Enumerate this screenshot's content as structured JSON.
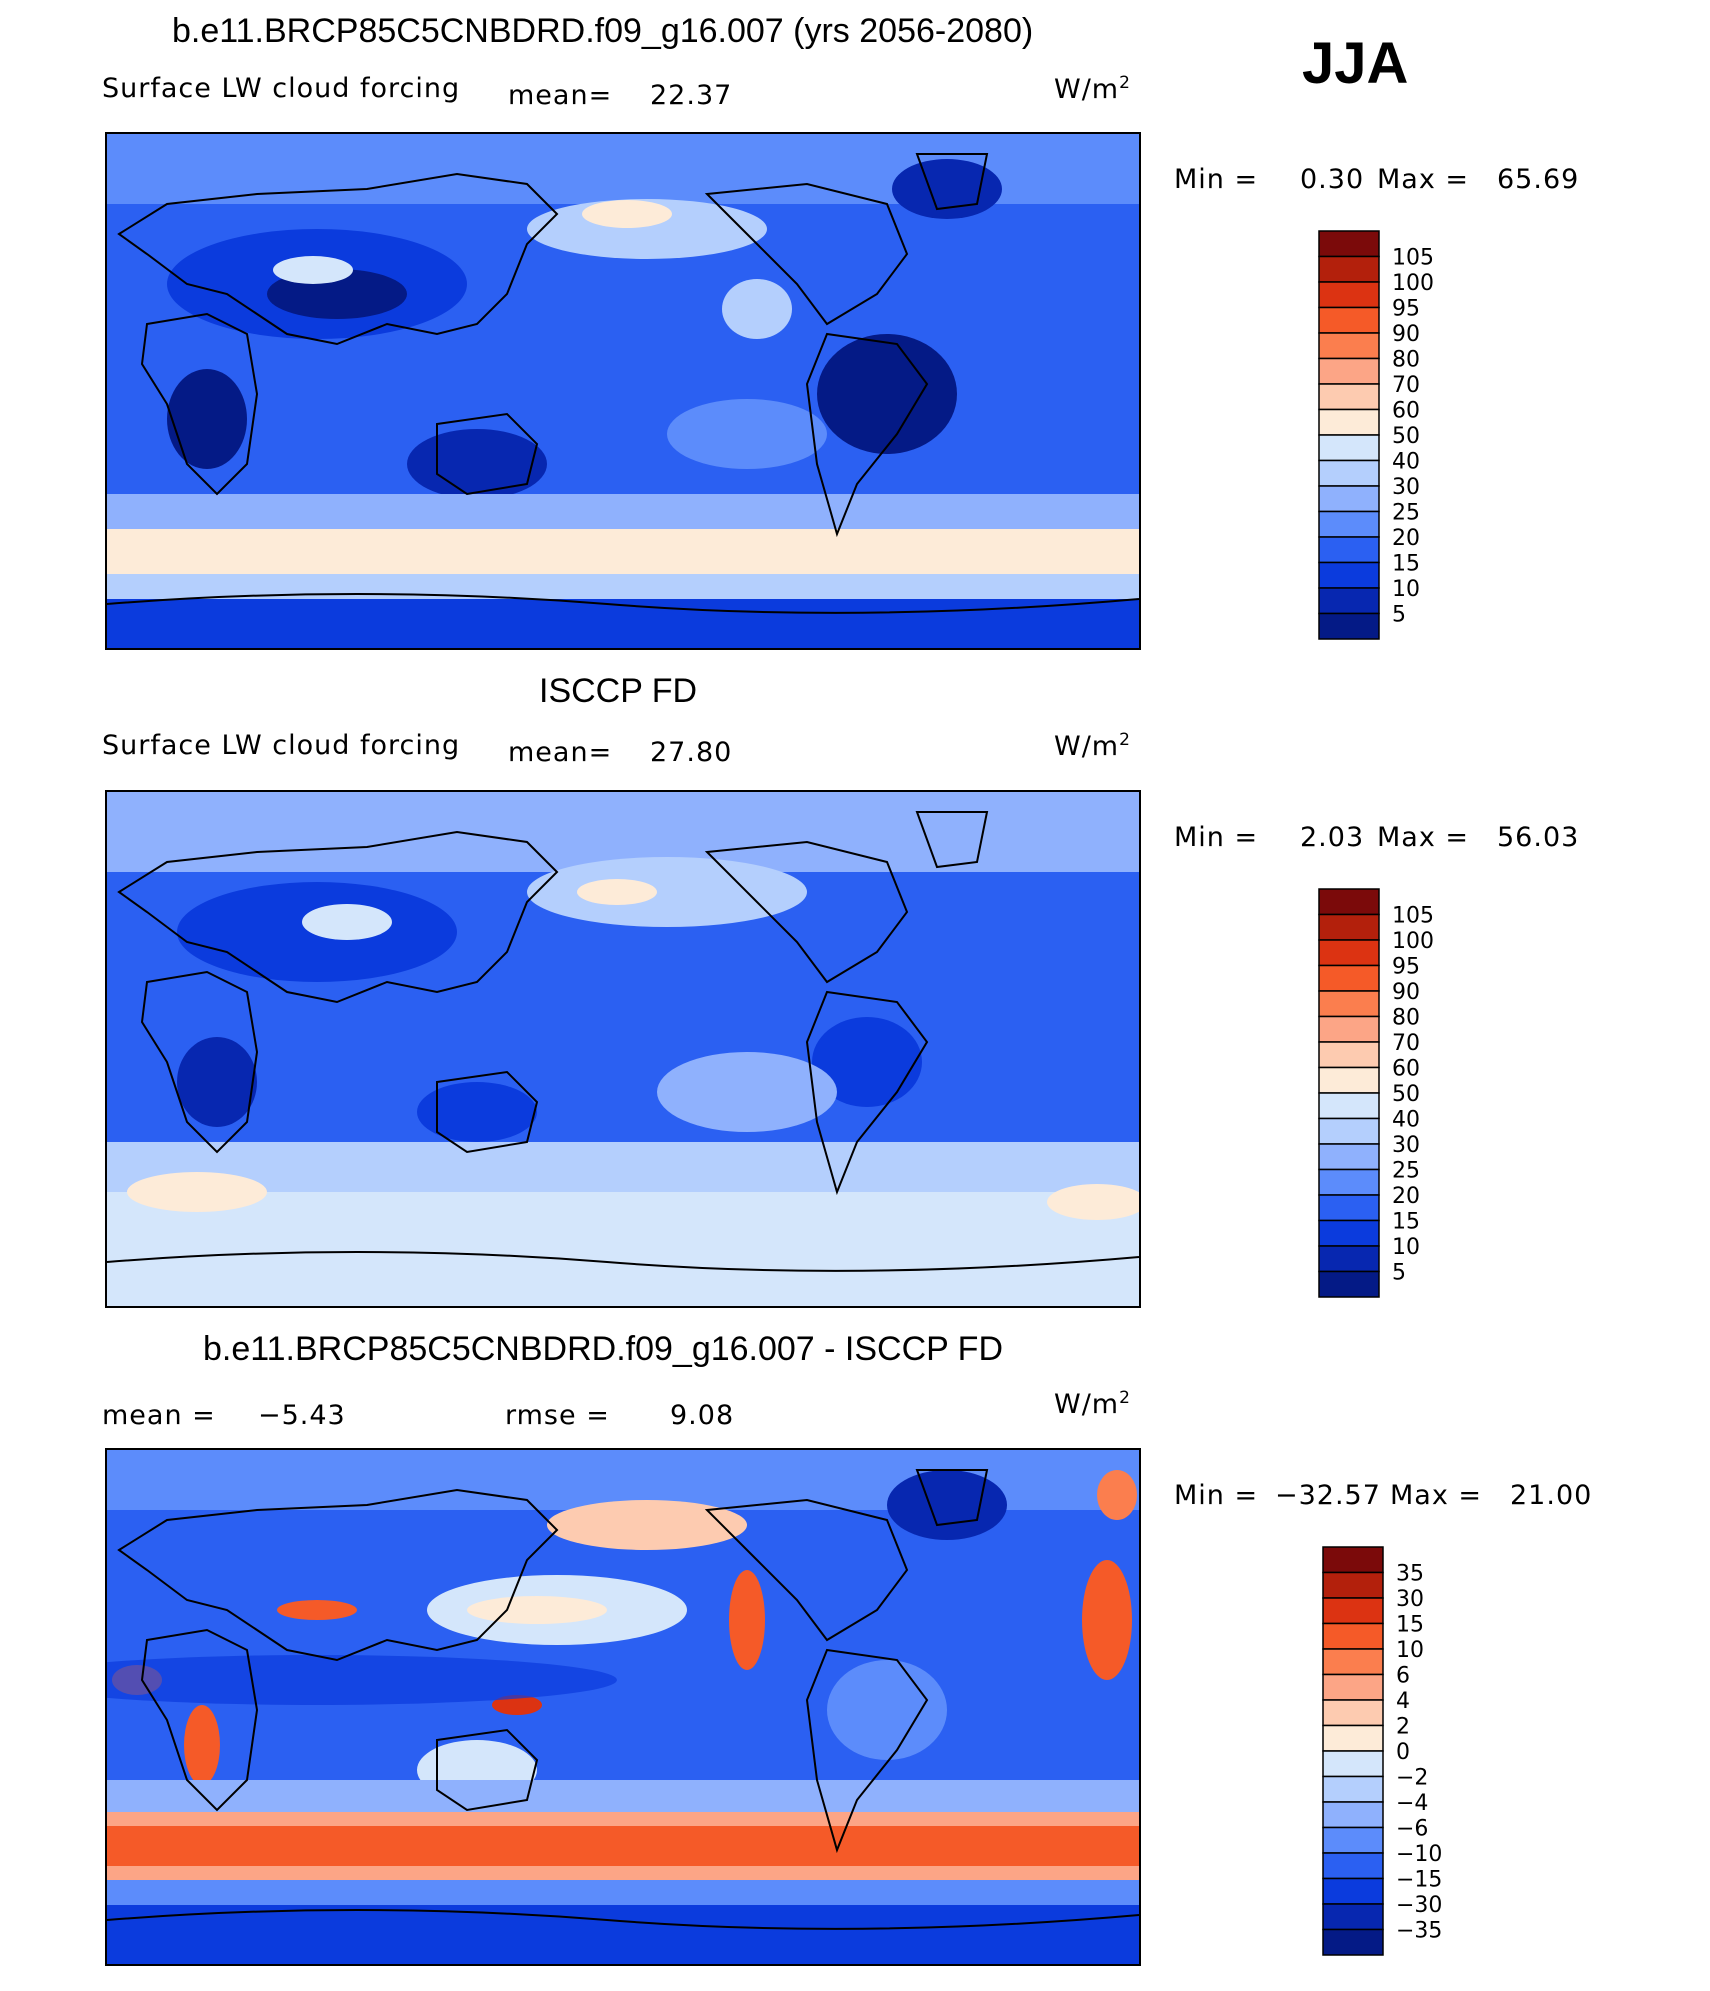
{
  "season": "JJA",
  "units": "W/m",
  "units_exp": "2",
  "chart_data": [
    {
      "type": "heatmap",
      "title": "b.e11.BRCP85C5CNBDRD.f09_g16.007 (yrs 2056-2080)",
      "variable": "Surface LW cloud forcing",
      "mean_label": "mean=",
      "mean": "22.37",
      "min_label": "Min =",
      "min": "0.30",
      "max_label": "Max =",
      "max": "65.69",
      "levels": [
        "105",
        "100",
        "95",
        "90",
        "80",
        "70",
        "60",
        "50",
        "40",
        "30",
        "25",
        "20",
        "15",
        "10",
        "5"
      ],
      "colors": [
        "#7b0a0a",
        "#b3200c",
        "#dc3312",
        "#f55a28",
        "#fb7e4e",
        "#fca586",
        "#fdcbb0",
        "#fdebd8",
        "#d4e6fb",
        "#b4cffd",
        "#8fb1fd",
        "#5c8cfb",
        "#2b60f2",
        "#0b3bdd",
        "#0727b0",
        "#041a86"
      ]
    },
    {
      "type": "heatmap",
      "title": "ISCCP FD",
      "variable": "Surface LW cloud forcing",
      "mean_label": "mean=",
      "mean": "27.80",
      "min_label": "Min =",
      "min": "2.03",
      "max_label": "Max =",
      "max": "56.03",
      "levels": [
        "105",
        "100",
        "95",
        "90",
        "80",
        "70",
        "60",
        "50",
        "40",
        "30",
        "25",
        "20",
        "15",
        "10",
        "5"
      ],
      "colors": [
        "#7b0a0a",
        "#b3200c",
        "#dc3312",
        "#f55a28",
        "#fb7e4e",
        "#fca586",
        "#fdcbb0",
        "#fdebd8",
        "#d4e6fb",
        "#b4cffd",
        "#8fb1fd",
        "#5c8cfb",
        "#2b60f2",
        "#0b3bdd",
        "#0727b0",
        "#041a86"
      ]
    },
    {
      "type": "heatmap",
      "title": "b.e11.BRCP85C5CNBDRD.f09_g16.007 - ISCCP FD",
      "mean_label": "mean =",
      "mean": "−5.43",
      "rmse_label": "rmse =",
      "rmse": "9.08",
      "min_label": "Min =",
      "min": "−32.57",
      "max_label": "Max =",
      "max": "21.00",
      "levels": [
        "35",
        "30",
        "15",
        "10",
        "6",
        "4",
        "2",
        "0",
        "−2",
        "−4",
        "−6",
        "−10",
        "−15",
        "−30",
        "−35"
      ],
      "colors": [
        "#7b0a0a",
        "#b3200c",
        "#dc3312",
        "#f55a28",
        "#fb7e4e",
        "#fca586",
        "#fdcbb0",
        "#fdebd8",
        "#d4e6fb",
        "#b4cffd",
        "#8fb1fd",
        "#5c8cfb",
        "#2b60f2",
        "#0b3bdd",
        "#0727b0",
        "#041a86"
      ]
    }
  ]
}
